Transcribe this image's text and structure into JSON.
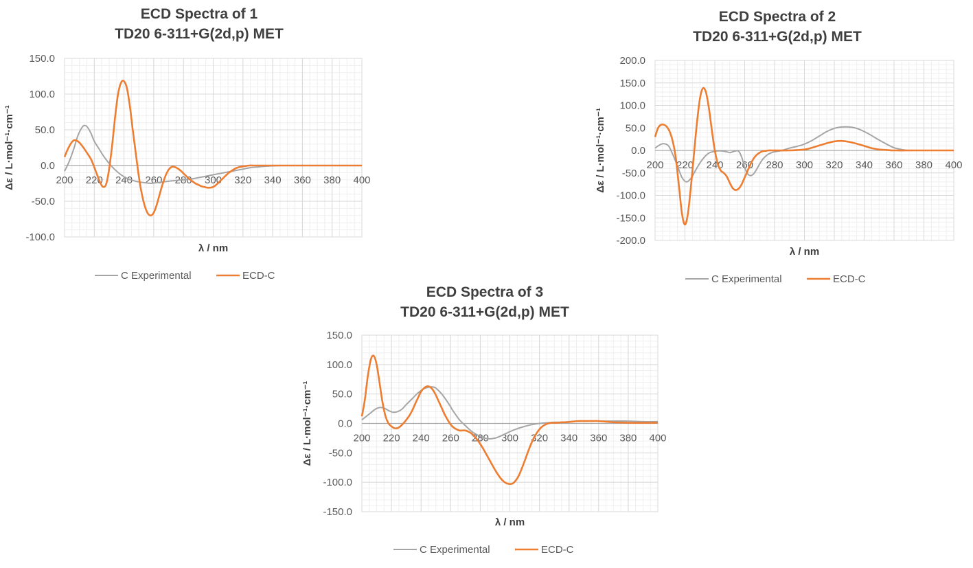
{
  "colors": {
    "experimental": "#a5a5a5",
    "calculated": "#ed7d31",
    "grid_major": "#d9d9d9",
    "grid_minor": "#efefef",
    "zero": "#a6a6a6"
  },
  "chart_data": [
    {
      "type": "line",
      "title_lines": [
        "ECD Spectra of 1",
        "TD20 6-311+G(2d,p) MET"
      ],
      "xlabel": "λ / nm",
      "ylabel": "Δε / L·mol⁻¹·cm⁻¹",
      "xlim": [
        200,
        400
      ],
      "ylim": [
        -100,
        150
      ],
      "xticks": [
        "200",
        "220",
        "240",
        "260",
        "280",
        "300",
        "320",
        "340",
        "360",
        "380",
        "400"
      ],
      "yticks": [
        "150.0",
        "100.0",
        "50.0",
        "0.0",
        "-50.0",
        "-100.0"
      ],
      "grid": true,
      "legend_position": "bottom",
      "series": [
        {
          "name": "C Experimental",
          "x": [
            200,
            203,
            206,
            209,
            212,
            214,
            216,
            218,
            220,
            223,
            226,
            230,
            234,
            238,
            242,
            246,
            250,
            254,
            258,
            262,
            266,
            270,
            275,
            280,
            285,
            290,
            295,
            300,
            305,
            310,
            315,
            320,
            325,
            330,
            335,
            340,
            345,
            350,
            360,
            370,
            380,
            390,
            400
          ],
          "y": [
            -8,
            5,
            22,
            42,
            54,
            56,
            52,
            44,
            34,
            24,
            14,
            3,
            -6,
            -13,
            -18,
            -21,
            -23,
            -24,
            -25,
            -24,
            -23,
            -22,
            -21,
            -20,
            -19,
            -17,
            -15,
            -13,
            -11,
            -9,
            -7,
            -5,
            -3,
            -2,
            -1,
            -0.5,
            0,
            0,
            0,
            0,
            0,
            0,
            0
          ]
        },
        {
          "name": "ECD-C",
          "x": [
            200,
            202,
            204,
            206,
            208,
            210,
            212,
            215,
            218,
            221,
            224,
            226,
            228,
            230,
            232,
            234,
            236,
            238,
            240,
            242,
            244,
            246,
            248,
            250,
            252,
            254,
            256,
            258,
            260,
            262,
            264,
            266,
            268,
            270,
            272,
            274,
            276,
            278,
            280,
            282,
            284,
            286,
            288,
            290,
            292,
            294,
            296,
            298,
            300,
            302,
            304,
            306,
            308,
            310,
            312,
            315,
            318,
            321,
            324,
            327,
            330,
            333,
            336,
            340,
            345,
            350,
            360,
            380,
            400
          ],
          "y": [
            12,
            22,
            30,
            35,
            35,
            32,
            27,
            18,
            8,
            -8,
            -24,
            -30,
            -26,
            -5,
            28,
            68,
            100,
            116,
            118,
            108,
            82,
            48,
            16,
            -16,
            -40,
            -57,
            -67,
            -70,
            -66,
            -55,
            -40,
            -26,
            -14,
            -6,
            -2,
            -2,
            -4,
            -7,
            -11,
            -15,
            -19,
            -22,
            -25,
            -27,
            -29,
            -30,
            -31,
            -31,
            -30,
            -27,
            -23,
            -19,
            -15,
            -11,
            -8,
            -4,
            -2,
            -1,
            0,
            0,
            0,
            0,
            0,
            0,
            0,
            0,
            0,
            0,
            0
          ]
        }
      ]
    },
    {
      "type": "line",
      "title_lines": [
        "ECD Spectra of 2",
        "TD20 6-311+G(2d,p) MET"
      ],
      "xlabel": "λ / nm",
      "ylabel": "Δε / L·mol⁻¹·cm⁻¹",
      "xlim": [
        200,
        400
      ],
      "ylim": [
        -200,
        200
      ],
      "xticks": [
        "200",
        "220",
        "240",
        "260",
        "280",
        "300",
        "320",
        "340",
        "360",
        "380",
        "400"
      ],
      "yticks": [
        "200.0",
        "150.0",
        "100.0",
        "50.0",
        "0.0",
        "-50.0",
        "-100.0",
        "-150.0",
        "-200.0"
      ],
      "grid": true,
      "legend_position": "bottom",
      "series": [
        {
          "name": "C Experimental",
          "x": [
            200,
            203,
            206,
            209,
            212,
            215,
            218,
            221,
            224,
            227,
            230,
            233,
            236,
            240,
            244,
            248,
            250,
            252,
            254,
            256,
            258,
            260,
            262,
            264,
            266,
            268,
            270,
            272,
            274,
            276,
            278,
            280,
            285,
            290,
            295,
            300,
            305,
            310,
            315,
            320,
            325,
            330,
            335,
            340,
            345,
            350,
            355,
            360,
            365,
            370,
            375,
            380,
            390,
            400
          ],
          "y": [
            5,
            12,
            15,
            10,
            -10,
            -35,
            -60,
            -70,
            -62,
            -45,
            -28,
            -15,
            -6,
            -2,
            -1,
            -3,
            -5,
            -3,
            -1,
            -2,
            -15,
            -38,
            -52,
            -56,
            -52,
            -42,
            -30,
            -20,
            -13,
            -8,
            -5,
            -3,
            0,
            5,
            9,
            14,
            22,
            32,
            42,
            49,
            52,
            52,
            49,
            42,
            33,
            23,
            14,
            6,
            2,
            0,
            0,
            0,
            0,
            0
          ]
        },
        {
          "name": "ECD-C",
          "x": [
            200,
            202,
            204,
            206,
            208,
            210,
            212,
            214,
            216,
            218,
            220,
            222,
            224,
            226,
            228,
            230,
            232,
            234,
            236,
            238,
            240,
            242,
            244,
            246,
            248,
            250,
            252,
            254,
            256,
            258,
            260,
            262,
            264,
            266,
            268,
            270,
            272,
            274,
            276,
            278,
            280,
            290,
            300,
            305,
            310,
            315,
            320,
            325,
            330,
            335,
            340,
            345,
            350,
            355,
            360,
            370,
            380,
            400
          ],
          "y": [
            30,
            50,
            57,
            57,
            52,
            40,
            18,
            -20,
            -80,
            -140,
            -165,
            -140,
            -80,
            -10,
            60,
            115,
            138,
            130,
            95,
            45,
            0,
            -30,
            -45,
            -50,
            -58,
            -72,
            -84,
            -88,
            -85,
            -75,
            -60,
            -45,
            -30,
            -18,
            -10,
            -5,
            -2,
            -1,
            0,
            0,
            0,
            0,
            2,
            6,
            11,
            16,
            20,
            21,
            19,
            15,
            10,
            5,
            2,
            1,
            0,
            0,
            0,
            0
          ]
        }
      ]
    },
    {
      "type": "line",
      "title_lines": [
        "ECD Spectra of 3",
        "TD20 6-311+G(2d,p) MET"
      ],
      "xlabel": "λ / nm",
      "ylabel": "Δε / L·mol⁻¹·cm⁻¹",
      "xlim": [
        200,
        400
      ],
      "ylim": [
        -150,
        150
      ],
      "xticks": [
        "200",
        "220",
        "240",
        "260",
        "280",
        "300",
        "320",
        "340",
        "360",
        "380",
        "400"
      ],
      "yticks": [
        "150.0",
        "100.0",
        "50.0",
        "0.0",
        "-50.0",
        "-100.0",
        "-150.0"
      ],
      "grid": true,
      "legend_position": "bottom",
      "series": [
        {
          "name": "C Experimental",
          "x": [
            200,
            203,
            206,
            209,
            212,
            215,
            218,
            221,
            224,
            227,
            230,
            234,
            238,
            242,
            246,
            248,
            250,
            254,
            258,
            262,
            266,
            270,
            275,
            280,
            285,
            290,
            295,
            300,
            305,
            310,
            315,
            320,
            325,
            330,
            335,
            340,
            350,
            360,
            370,
            380,
            390,
            400
          ],
          "y": [
            6,
            12,
            18,
            24,
            27,
            26,
            22,
            19,
            20,
            24,
            32,
            42,
            52,
            59,
            62,
            62,
            60,
            50,
            36,
            20,
            6,
            -4,
            -15,
            -22,
            -26,
            -25,
            -20,
            -14,
            -9,
            -5,
            -2,
            0,
            1,
            2,
            2,
            3,
            4,
            4,
            4,
            4,
            3,
            3
          ]
        },
        {
          "name": "ECD-C",
          "x": [
            200,
            202,
            204,
            206,
            208,
            210,
            212,
            214,
            216,
            218,
            220,
            222,
            224,
            226,
            228,
            230,
            232,
            234,
            236,
            238,
            240,
            242,
            244,
            246,
            248,
            250,
            252,
            254,
            256,
            258,
            260,
            262,
            264,
            266,
            268,
            270,
            272,
            274,
            276,
            278,
            280,
            282,
            284,
            286,
            288,
            290,
            292,
            294,
            296,
            298,
            300,
            302,
            304,
            306,
            308,
            310,
            312,
            314,
            316,
            318,
            320,
            322,
            324,
            326,
            328,
            330,
            332,
            335,
            338,
            342,
            346,
            350,
            355,
            360,
            370,
            380,
            400
          ],
          "y": [
            12,
            40,
            80,
            108,
            115,
            100,
            68,
            35,
            12,
            0,
            -5,
            -8,
            -8,
            -5,
            0,
            6,
            13,
            22,
            33,
            44,
            54,
            60,
            63,
            62,
            57,
            48,
            37,
            26,
            15,
            6,
            -2,
            -7,
            -10,
            -12,
            -12,
            -12,
            -14,
            -17,
            -22,
            -28,
            -35,
            -43,
            -52,
            -61,
            -70,
            -79,
            -87,
            -94,
            -99,
            -102,
            -103,
            -102,
            -97,
            -89,
            -77,
            -64,
            -50,
            -37,
            -26,
            -17,
            -10,
            -5,
            -2,
            0,
            1,
            1,
            1,
            2,
            2,
            3,
            4,
            4,
            4,
            4,
            2,
            1,
            1
          ]
        }
      ]
    }
  ]
}
